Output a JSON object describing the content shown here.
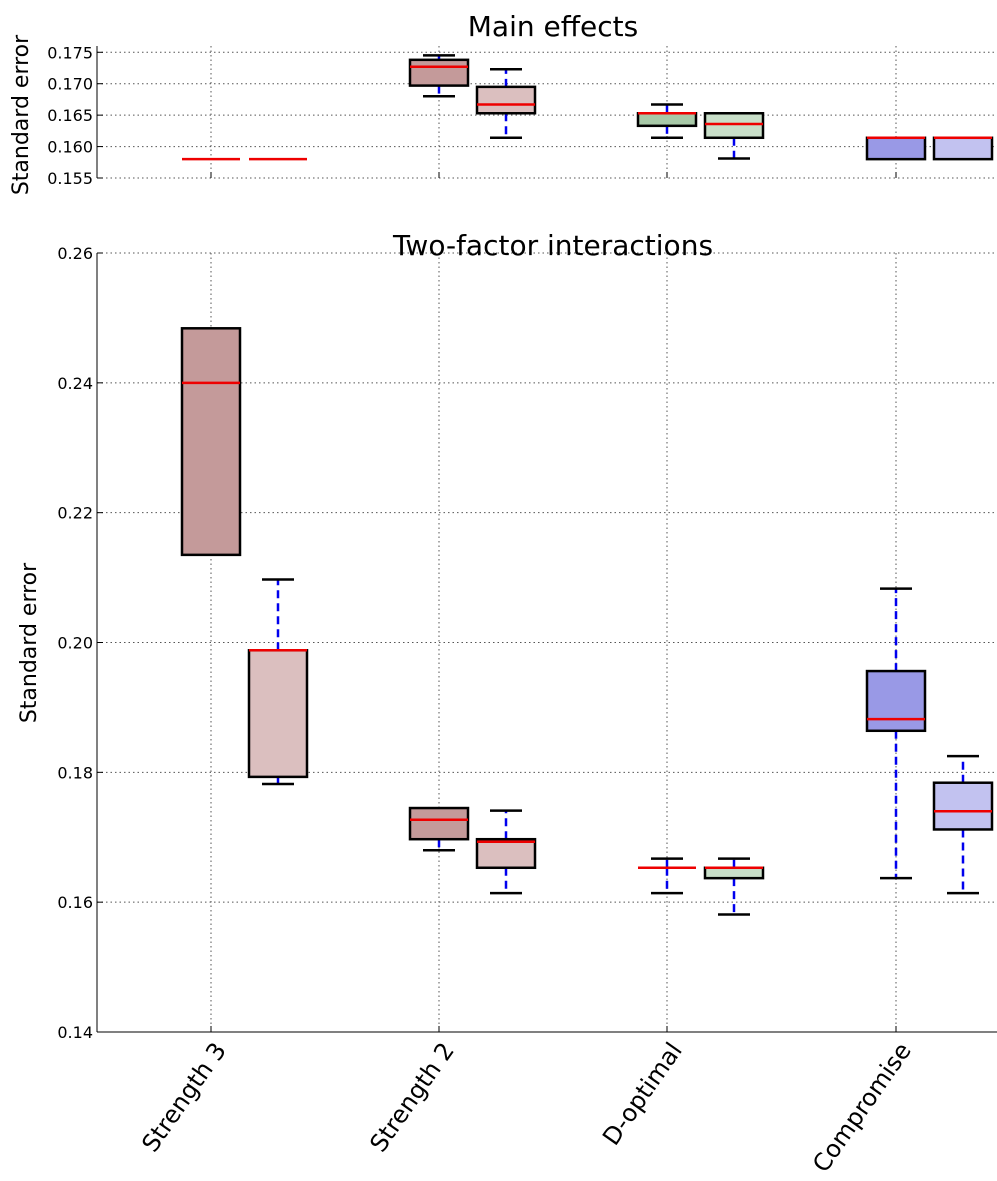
{
  "chart_data": [
    {
      "type": "box",
      "title": "Main effects",
      "ylabel": "Standard error",
      "ylim": [
        0.155,
        0.176
      ],
      "yticks": [
        "0.155",
        "0.160",
        "0.165",
        "0.170",
        "0.175"
      ],
      "grid": true,
      "categories": [
        "Strength 3",
        "Strength 2",
        "D-optimal",
        "Compromise"
      ],
      "boxes": [
        {
          "category": "Strength 3",
          "fill": "#c49a9a",
          "whislo": 0.158,
          "q1": 0.158,
          "med": 0.158,
          "q3": 0.158,
          "whishi": 0.158
        },
        {
          "category": "Strength 3",
          "fill": "#dbbfbf",
          "whislo": 0.158,
          "q1": 0.158,
          "med": 0.158,
          "q3": 0.158,
          "whishi": 0.158
        },
        {
          "category": "Strength 2",
          "fill": "#c49a9a",
          "whislo": 0.168,
          "q1": 0.1697,
          "med": 0.1727,
          "q3": 0.1738,
          "whishi": 0.1745
        },
        {
          "category": "Strength 2",
          "fill": "#dbbfbf",
          "whislo": 0.1614,
          "q1": 0.1653,
          "med": 0.1667,
          "q3": 0.1695,
          "whishi": 0.1723
        },
        {
          "category": "D-optimal",
          "fill": "#a8c9a8",
          "whislo": 0.1614,
          "q1": 0.1633,
          "med": 0.1653,
          "q3": 0.1653,
          "whishi": 0.1667
        },
        {
          "category": "D-optimal",
          "fill": "#c9dfc9",
          "whislo": 0.1581,
          "q1": 0.1614,
          "med": 0.1636,
          "q3": 0.1653,
          "whishi": 0.1653
        },
        {
          "category": "Compromise",
          "fill": "#9999e6",
          "whislo": 0.158,
          "q1": 0.158,
          "med": 0.1614,
          "q3": 0.1614,
          "whishi": 0.1614
        },
        {
          "category": "Compromise",
          "fill": "#c2c2f0",
          "whislo": 0.158,
          "q1": 0.158,
          "med": 0.1614,
          "q3": 0.1614,
          "whishi": 0.1614
        }
      ]
    },
    {
      "type": "box",
      "title": "Two-factor interactions",
      "ylabel": "Standard error",
      "ylim": [
        0.14,
        0.26
      ],
      "yticks": [
        "0.14",
        "0.16",
        "0.18",
        "0.20",
        "0.22",
        "0.24",
        "0.26"
      ],
      "grid": true,
      "categories": [
        "Strength 3",
        "Strength 2",
        "D-optimal",
        "Compromise"
      ],
      "boxes": [
        {
          "category": "Strength 3",
          "fill": "#c49a9a",
          "whislo": 0.2135,
          "q1": 0.2135,
          "med": 0.24,
          "q3": 0.2484,
          "whishi": 0.2484
        },
        {
          "category": "Strength 3",
          "fill": "#dbbfbf",
          "whislo": 0.1782,
          "q1": 0.1793,
          "med": 0.1988,
          "q3": 0.1988,
          "whishi": 0.2097
        },
        {
          "category": "Strength 2",
          "fill": "#c49a9a",
          "whislo": 0.168,
          "q1": 0.1697,
          "med": 0.1727,
          "q3": 0.1745,
          "whishi": 0.1745
        },
        {
          "category": "Strength 2",
          "fill": "#dbbfbf",
          "whislo": 0.1614,
          "q1": 0.1653,
          "med": 0.1693,
          "q3": 0.1697,
          "whishi": 0.1741
        },
        {
          "category": "D-optimal",
          "fill": "#a8c9a8",
          "whislo": 0.1614,
          "q1": 0.1653,
          "med": 0.1653,
          "q3": 0.1653,
          "whishi": 0.1667
        },
        {
          "category": "D-optimal",
          "fill": "#c9dfc9",
          "whislo": 0.1581,
          "q1": 0.1637,
          "med": 0.1653,
          "q3": 0.1653,
          "whishi": 0.1667
        },
        {
          "category": "Compromise",
          "fill": "#9999e6",
          "whislo": 0.1637,
          "q1": 0.1864,
          "med": 0.1882,
          "q3": 0.1956,
          "whishi": 0.2083
        },
        {
          "category": "Compromise",
          "fill": "#c2c2f0",
          "whislo": 0.1614,
          "q1": 0.1712,
          "med": 0.174,
          "q3": 0.1784,
          "whishi": 0.1825
        }
      ]
    }
  ]
}
